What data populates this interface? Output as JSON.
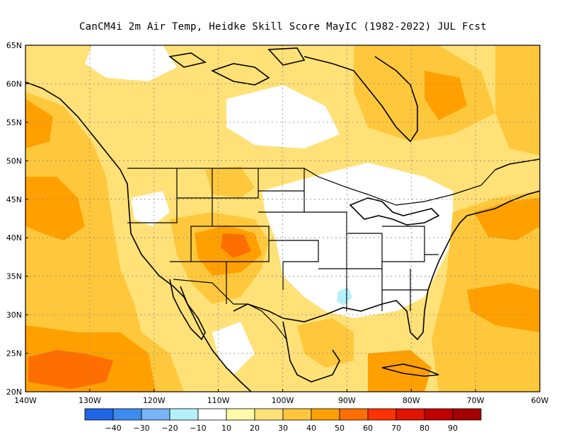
{
  "title": "CanCM4i  2m Air Temp, Heidke Skill Score MayIC (1982-2022) JUL Fcst",
  "map": {
    "lon_range": [
      -140,
      -60
    ],
    "lat_range": [
      20,
      65
    ],
    "lat_labels": [
      "65N",
      "60N",
      "55N",
      "50N",
      "45N",
      "40N",
      "35N",
      "30N",
      "25N",
      "20N"
    ],
    "lon_labels": [
      "140W",
      "130W",
      "120W",
      "110W",
      "100W",
      "90W",
      "80W",
      "70W",
      "60W"
    ]
  },
  "colorbar": {
    "colors": [
      "#1e64e6",
      "#3c8cf0",
      "#78b4f8",
      "#b4f0fa",
      "#ffffff",
      "#fffaaa",
      "#ffe178",
      "#ffc83c",
      "#ffa000",
      "#ff6e00",
      "#ff3200",
      "#e11400",
      "#c00000",
      "#a50000"
    ],
    "labels": [
      "−40",
      "−30",
      "−20",
      "−10",
      "10",
      "20",
      "30",
      "40",
      "50",
      "60",
      "70",
      "80",
      "90"
    ]
  }
}
